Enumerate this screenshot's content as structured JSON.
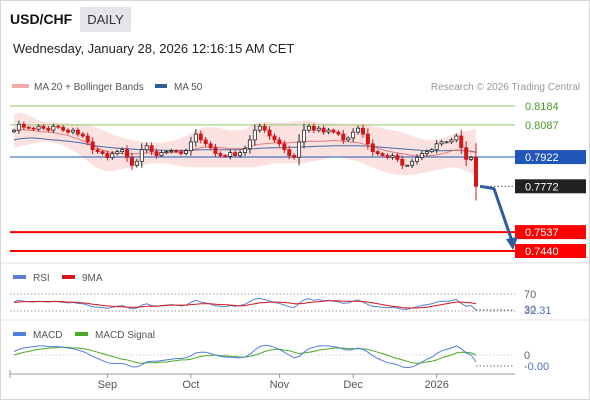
{
  "header": {
    "symbol": "USD/CHF",
    "period": "DAILY",
    "datetime": "Wednesday, January 28, 2026 12:16:15 AM CET"
  },
  "legend": {
    "ma20_label": "MA 20 + Bollinger Bands",
    "ma50_label": "MA 50",
    "credit": "Research © 2026 Trading Central"
  },
  "colors": {
    "bollinger": "#f7a8a8",
    "ma20": "#e07070",
    "ma50": "#2f5d9b",
    "resistance": "#8cc66e",
    "pivot": "#1f56b8",
    "support": "#ff0000",
    "up_candle": "#2a2a2a",
    "down_candle": "#d01818",
    "rsi": "#5b7fd4",
    "rsi_ma": "#d81818",
    "macd": "#4f7fe0",
    "macd_signal": "#4aaa22"
  },
  "chart_data": [
    {
      "type": "candlestick",
      "y_range": [
        0.735,
        0.826
      ],
      "levels": [
        {
          "label": "0.8184",
          "value": 0.8184,
          "kind": "resistance"
        },
        {
          "label": "0.8087",
          "value": 0.8087,
          "kind": "resistance"
        },
        {
          "label": "0.7922",
          "value": 0.7922,
          "kind": "pivot"
        },
        {
          "label": "0.7772",
          "value": 0.7772,
          "kind": "last"
        },
        {
          "label": "0.7537",
          "value": 0.7537,
          "kind": "support"
        },
        {
          "label": "0.7440",
          "value": 0.744,
          "kind": "support"
        }
      ],
      "closes": [
        0.806,
        0.809,
        0.8075,
        0.807,
        0.8065,
        0.808,
        0.807,
        0.806,
        0.808,
        0.8075,
        0.806,
        0.805,
        0.806,
        0.804,
        0.803,
        0.8,
        0.796,
        0.795,
        0.794,
        0.792,
        0.794,
        0.795,
        0.796,
        0.792,
        0.788,
        0.79,
        0.796,
        0.798,
        0.795,
        0.793,
        0.7945,
        0.795,
        0.7955,
        0.795,
        0.794,
        0.7955,
        0.8,
        0.804,
        0.801,
        0.799,
        0.797,
        0.794,
        0.793,
        0.7925,
        0.7945,
        0.793,
        0.7945,
        0.7965,
        0.801,
        0.806,
        0.808,
        0.806,
        0.803,
        0.801,
        0.799,
        0.796,
        0.793,
        0.792,
        0.8,
        0.806,
        0.808,
        0.806,
        0.807,
        0.805,
        0.806,
        0.805,
        0.804,
        0.801,
        0.802,
        0.805,
        0.807,
        0.804,
        0.799,
        0.795,
        0.794,
        0.793,
        0.792,
        0.793,
        0.791,
        0.788,
        0.788,
        0.79,
        0.792,
        0.794,
        0.795,
        0.796,
        0.799,
        0.8,
        0.8,
        0.801,
        0.803,
        0.797,
        0.791,
        0.792,
        0.7772
      ],
      "bb_upper": [
        0.814,
        0.815,
        0.8145,
        0.8135,
        0.8125,
        0.811,
        0.8105,
        0.81,
        0.81,
        0.8095,
        0.8095,
        0.8095,
        0.809,
        0.809,
        0.809,
        0.809,
        0.808,
        0.807,
        0.806,
        0.805,
        0.804,
        0.803,
        0.802,
        0.8015,
        0.801,
        0.8005,
        0.8,
        0.8,
        0.7995,
        0.7995,
        0.7995,
        0.8,
        0.8005,
        0.801,
        0.802,
        0.803,
        0.8045,
        0.806,
        0.807,
        0.8075,
        0.8075,
        0.8075,
        0.807,
        0.8065,
        0.806,
        0.806,
        0.806,
        0.8065,
        0.808,
        0.8095,
        0.81,
        0.81,
        0.81,
        0.81,
        0.81,
        0.81,
        0.81,
        0.8105,
        0.8105,
        0.811,
        0.811,
        0.8105,
        0.81,
        0.8095,
        0.8095,
        0.8095,
        0.809,
        0.809,
        0.809,
        0.809,
        0.809,
        0.809,
        0.8085,
        0.808,
        0.8075,
        0.807,
        0.8065,
        0.806,
        0.8055,
        0.805,
        0.804,
        0.803,
        0.802,
        0.8015,
        0.801,
        0.801,
        0.801,
        0.8015,
        0.8025,
        0.8035,
        0.8045,
        0.805,
        0.8055,
        0.806,
        0.807
      ],
      "bb_lower": [
        0.797,
        0.7975,
        0.798,
        0.7985,
        0.799,
        0.7995,
        0.8,
        0.8,
        0.7995,
        0.799,
        0.798,
        0.797,
        0.7955,
        0.794,
        0.792,
        0.79,
        0.788,
        0.7865,
        0.7855,
        0.785,
        0.785,
        0.7855,
        0.786,
        0.7865,
        0.787,
        0.7875,
        0.788,
        0.7885,
        0.789,
        0.789,
        0.789,
        0.789,
        0.7885,
        0.788,
        0.7875,
        0.787,
        0.787,
        0.787,
        0.787,
        0.787,
        0.787,
        0.787,
        0.787,
        0.787,
        0.787,
        0.787,
        0.787,
        0.787,
        0.787,
        0.787,
        0.7875,
        0.788,
        0.7885,
        0.789,
        0.789,
        0.789,
        0.789,
        0.789,
        0.789,
        0.789,
        0.7895,
        0.79,
        0.7905,
        0.791,
        0.7915,
        0.792,
        0.792,
        0.7915,
        0.791,
        0.7905,
        0.79,
        0.789,
        0.788,
        0.787,
        0.786,
        0.785,
        0.784,
        0.7835,
        0.783,
        0.783,
        0.783,
        0.783,
        0.7835,
        0.784,
        0.7845,
        0.785,
        0.7855,
        0.786,
        0.7865,
        0.787,
        0.787,
        0.786,
        0.785,
        0.784,
        0.782
      ],
      "ma20": [
        0.8055,
        0.8062,
        0.8062,
        0.806,
        0.8058,
        0.8053,
        0.8052,
        0.805,
        0.8048,
        0.8043,
        0.8038,
        0.8033,
        0.8023,
        0.8015,
        0.8005,
        0.7995,
        0.798,
        0.7968,
        0.7958,
        0.795,
        0.7945,
        0.7943,
        0.794,
        0.794,
        0.794,
        0.794,
        0.794,
        0.7943,
        0.7943,
        0.7943,
        0.7943,
        0.7945,
        0.7945,
        0.7945,
        0.7948,
        0.795,
        0.7958,
        0.7965,
        0.797,
        0.7973,
        0.7973,
        0.7973,
        0.797,
        0.7968,
        0.7965,
        0.7965,
        0.7965,
        0.7968,
        0.7975,
        0.7983,
        0.7988,
        0.799,
        0.7993,
        0.7995,
        0.7995,
        0.7995,
        0.7995,
        0.7998,
        0.7998,
        0.8,
        0.8003,
        0.8003,
        0.8003,
        0.8003,
        0.8005,
        0.8008,
        0.8005,
        0.8003,
        0.8,
        0.7998,
        0.7995,
        0.799,
        0.7983,
        0.7975,
        0.7968,
        0.796,
        0.7953,
        0.7948,
        0.7943,
        0.794,
        0.7935,
        0.793,
        0.7928,
        0.7928,
        0.7928,
        0.793,
        0.7933,
        0.7938,
        0.7945,
        0.7953,
        0.7958,
        0.7955,
        0.7953,
        0.795,
        0.7945
      ],
      "ma50": [
        0.801,
        0.8015,
        0.8018,
        0.802,
        0.802,
        0.8018,
        0.8015,
        0.8012,
        0.801,
        0.8008,
        0.8005,
        0.8003,
        0.8,
        0.7997,
        0.7993,
        0.7988,
        0.7983,
        0.7978,
        0.7975,
        0.7972,
        0.797,
        0.7968,
        0.7966,
        0.7965,
        0.7963,
        0.7961,
        0.796,
        0.796,
        0.796,
        0.7958,
        0.7957,
        0.7957,
        0.7956,
        0.7956,
        0.7956,
        0.7956,
        0.7957,
        0.7958,
        0.7959,
        0.796,
        0.796,
        0.796,
        0.796,
        0.796,
        0.796,
        0.796,
        0.7961,
        0.7962,
        0.7963,
        0.7965,
        0.7967,
        0.7968,
        0.7969,
        0.797,
        0.797,
        0.7971,
        0.7972,
        0.7972,
        0.7973,
        0.7974,
        0.7975,
        0.7976,
        0.7977,
        0.7978,
        0.7979,
        0.798,
        0.798,
        0.798,
        0.798,
        0.798,
        0.798,
        0.7979,
        0.7978,
        0.7976,
        0.7974,
        0.7972,
        0.797,
        0.7968,
        0.7966,
        0.7964,
        0.7962,
        0.796,
        0.7958,
        0.7956,
        0.7955,
        0.7954,
        0.7954,
        0.7954,
        0.7955,
        0.7956,
        0.7957,
        0.7956,
        0.7954,
        0.7952,
        0.7948
      ],
      "forecast_path": [
        0.7772,
        0.776,
        0.744
      ],
      "x_tick_labels": [
        "Sep",
        "Oct",
        "Nov",
        "Dec",
        "2026"
      ],
      "x_tick_index": [
        19,
        36,
        54,
        69,
        86
      ]
    },
    {
      "type": "line",
      "name_label": "RSI",
      "ma_label": "9MA",
      "ylim": [
        0,
        100
      ],
      "levels": [
        70,
        30
      ],
      "level_labels": [
        "70",
        "30"
      ],
      "last_value_label": "32.31",
      "rsi": [
        52,
        55,
        53,
        52,
        51,
        53,
        52,
        51,
        53,
        52,
        50,
        49,
        50,
        48,
        47,
        44,
        40,
        39,
        38,
        36,
        39,
        41,
        43,
        39,
        35,
        37,
        44,
        47,
        43,
        41,
        43,
        44,
        45,
        44,
        42,
        44,
        50,
        55,
        51,
        49,
        46,
        42,
        41,
        40,
        43,
        41,
        43,
        46,
        52,
        58,
        60,
        57,
        53,
        50,
        48,
        44,
        40,
        38,
        48,
        56,
        59,
        55,
        57,
        54,
        55,
        53,
        52,
        48,
        49,
        53,
        56,
        51,
        45,
        41,
        40,
        39,
        38,
        39,
        37,
        34,
        34,
        37,
        40,
        43,
        45,
        47,
        51,
        53,
        53,
        54,
        57,
        48,
        41,
        43,
        32.31
      ],
      "rsi_ma": [
        50,
        51,
        52,
        52,
        52,
        52,
        52,
        52,
        52,
        52,
        52,
        51,
        51,
        50,
        49,
        48,
        46,
        45,
        43,
        42,
        41,
        40,
        40,
        39,
        39,
        39,
        40,
        41,
        41,
        41,
        42,
        43,
        44,
        44,
        44,
        44,
        45,
        46,
        47,
        47,
        47,
        46,
        45,
        45,
        44,
        43,
        42,
        43,
        45,
        47,
        49,
        50,
        51,
        51,
        51,
        50,
        49,
        47,
        47,
        48,
        50,
        51,
        52,
        53,
        54,
        54,
        54,
        53,
        53,
        53,
        53,
        52,
        51,
        49,
        47,
        45,
        43,
        41,
        40,
        38,
        37,
        37,
        37,
        38,
        39,
        41,
        43,
        45,
        47,
        49,
        51,
        51,
        50,
        49,
        47
      ]
    },
    {
      "type": "line",
      "name_label": "MACD",
      "signal_label": "MACD Signal",
      "zero_label": "0",
      "last_value_label": "-0.00",
      "ylim": [
        -0.004,
        0.0025
      ],
      "macd": [
        0.0005,
        0.0008,
        0.001,
        0.0011,
        0.0012,
        0.0013,
        0.0013,
        0.0012,
        0.0012,
        0.0012,
        0.0011,
        0.001,
        0.0009,
        0.0007,
        0.0005,
        0.0002,
        -0.0002,
        -0.0005,
        -0.0008,
        -0.0011,
        -0.0012,
        -0.0012,
        -0.0012,
        -0.0014,
        -0.0017,
        -0.0017,
        -0.0014,
        -0.001,
        -0.0009,
        -0.0009,
        -0.0008,
        -0.0007,
        -0.0006,
        -0.0005,
        -0.0005,
        -0.0004,
        -0.0001,
        0.0003,
        0.0004,
        0.0004,
        0.0002,
        0.0,
        -0.0002,
        -0.0003,
        -0.0003,
        -0.0004,
        -0.0004,
        -0.0003,
        0.0001,
        0.0007,
        0.0012,
        0.0014,
        0.0013,
        0.0011,
        0.0008,
        0.0004,
        0.0,
        -0.0004,
        -0.0002,
        0.0004,
        0.0009,
        0.0011,
        0.0013,
        0.0013,
        0.0013,
        0.0012,
        0.0011,
        0.0008,
        0.0007,
        0.0008,
        0.001,
        0.0008,
        0.0004,
        -0.0001,
        -0.0005,
        -0.0008,
        -0.0011,
        -0.0012,
        -0.0014,
        -0.0017,
        -0.0018,
        -0.0017,
        -0.0014,
        -0.001,
        -0.0006,
        -0.0003,
        0.0002,
        0.0006,
        0.0008,
        0.001,
        0.0013,
        0.0009,
        0.0003,
        0.0,
        -0.001
      ],
      "signal": [
        0.0,
        0.0002,
        0.0004,
        0.0005,
        0.0007,
        0.0008,
        0.0009,
        0.001,
        0.001,
        0.0011,
        0.0011,
        0.0011,
        0.001,
        0.001,
        0.0009,
        0.0008,
        0.0006,
        0.0004,
        0.0002,
        0.0,
        -0.0002,
        -0.0004,
        -0.0006,
        -0.0007,
        -0.0009,
        -0.0011,
        -0.0012,
        -0.0011,
        -0.0011,
        -0.0011,
        -0.001,
        -0.001,
        -0.0009,
        -0.0008,
        -0.0007,
        -0.0007,
        -0.0006,
        -0.0004,
        -0.0002,
        -0.0001,
        -0.0001,
        0.0,
        -0.0001,
        -0.0001,
        -0.0002,
        -0.0002,
        -0.0003,
        -0.0003,
        -0.0002,
        0.0,
        0.0002,
        0.0005,
        0.0007,
        0.0008,
        0.0008,
        0.0007,
        0.0006,
        0.0004,
        0.0002,
        0.0003,
        0.0004,
        0.0005,
        0.0007,
        0.0008,
        0.0009,
        0.001,
        0.001,
        0.001,
        0.0009,
        0.0009,
        0.0009,
        0.0009,
        0.0008,
        0.0006,
        0.0004,
        0.0002,
        0.0,
        -0.0003,
        -0.0005,
        -0.0007,
        -0.0009,
        -0.0011,
        -0.0012,
        -0.0011,
        -0.001,
        -0.0009,
        -0.0007,
        -0.0004,
        -0.0002,
        0.0,
        0.0003,
        0.0004,
        0.0004,
        0.0003,
        0.0
      ]
    }
  ]
}
